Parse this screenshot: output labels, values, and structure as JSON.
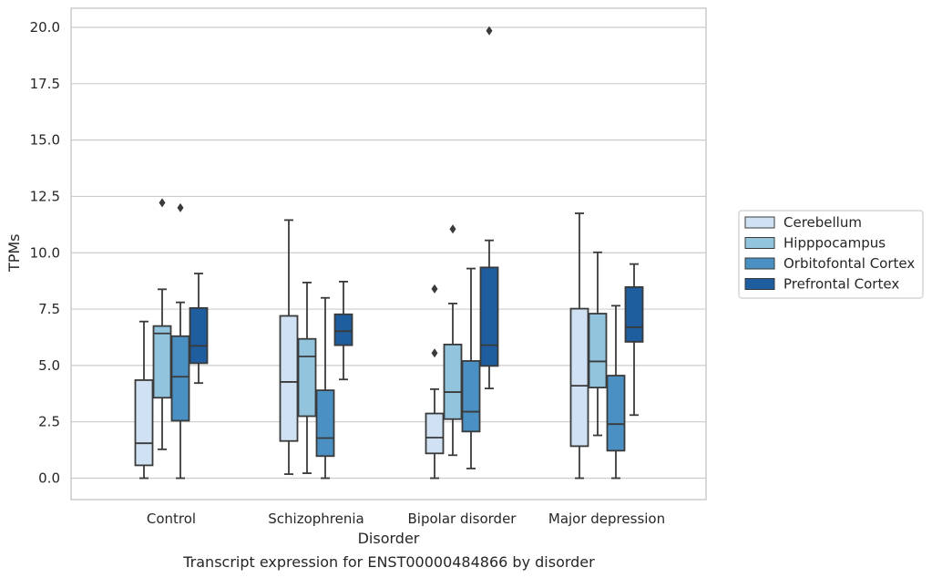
{
  "chart_data": {
    "type": "boxplot",
    "title": "",
    "caption": "Transcript expression for ENST00000484866 by disorder",
    "xlabel": "Disorder",
    "ylabel": "TPMs",
    "ylim": [
      -0.95,
      20.85
    ],
    "yticks": [
      0.0,
      2.5,
      5.0,
      7.5,
      10.0,
      12.5,
      15.0,
      17.5,
      20.0
    ],
    "ytick_labels": [
      "0.0",
      "2.5",
      "5.0",
      "7.5",
      "10.0",
      "12.5",
      "15.0",
      "17.5",
      "20.0"
    ],
    "grid": "horizontal",
    "legend_position": "right",
    "categories": [
      "Control",
      "Schizophrenia",
      "Bipolar disorder",
      "Major depression"
    ],
    "series": [
      {
        "name": "Cerebellum",
        "color": "#cfe1f2",
        "boxes": [
          {
            "whislo": 0.0,
            "q1": 0.57,
            "med": 1.55,
            "q3": 4.35,
            "whishi": 6.95,
            "fliers": []
          },
          {
            "whislo": 0.18,
            "q1": 1.65,
            "med": 4.27,
            "q3": 7.2,
            "whishi": 11.45,
            "fliers": []
          },
          {
            "whislo": 0.0,
            "q1": 1.1,
            "med": 1.8,
            "q3": 2.87,
            "whishi": 3.95,
            "fliers": [
              5.55,
              8.4
            ]
          },
          {
            "whislo": 0.0,
            "q1": 1.42,
            "med": 4.1,
            "q3": 7.52,
            "whishi": 11.75,
            "fliers": []
          }
        ]
      },
      {
        "name": "Hipppocampus",
        "color": "#93c4de",
        "boxes": [
          {
            "whislo": 1.28,
            "q1": 3.57,
            "med": 6.42,
            "q3": 6.75,
            "whishi": 8.38,
            "fliers": [
              12.22
            ]
          },
          {
            "whislo": 0.22,
            "q1": 2.75,
            "med": 5.4,
            "q3": 6.18,
            "whishi": 8.68,
            "fliers": []
          },
          {
            "whislo": 1.02,
            "q1": 2.62,
            "med": 3.82,
            "q3": 5.93,
            "whishi": 7.75,
            "fliers": [
              11.05
            ]
          },
          {
            "whislo": 1.9,
            "q1": 4.02,
            "med": 5.18,
            "q3": 7.3,
            "whishi": 10.02,
            "fliers": []
          }
        ]
      },
      {
        "name": "Orbitofontal Cortex",
        "color": "#4a90c2",
        "boxes": [
          {
            "whislo": 0.0,
            "q1": 2.55,
            "med": 4.5,
            "q3": 6.3,
            "whishi": 7.8,
            "fliers": [
              12.0
            ]
          },
          {
            "whislo": 0.0,
            "q1": 0.98,
            "med": 1.78,
            "q3": 3.9,
            "whishi": 8.0,
            "fliers": []
          },
          {
            "whislo": 0.43,
            "q1": 2.07,
            "med": 2.95,
            "q3": 5.2,
            "whishi": 9.3,
            "fliers": []
          },
          {
            "whislo": 0.0,
            "q1": 1.22,
            "med": 2.4,
            "q3": 4.55,
            "whishi": 7.65,
            "fliers": []
          }
        ]
      },
      {
        "name": "Prefrontal Cortex",
        "color": "#1e5d9e",
        "boxes": [
          {
            "whislo": 4.22,
            "q1": 5.1,
            "med": 5.87,
            "q3": 7.55,
            "whishi": 9.08,
            "fliers": []
          },
          {
            "whislo": 4.38,
            "q1": 5.9,
            "med": 6.52,
            "q3": 7.27,
            "whishi": 8.72,
            "fliers": []
          },
          {
            "whislo": 3.98,
            "q1": 4.98,
            "med": 5.9,
            "q3": 9.35,
            "whishi": 10.55,
            "fliers": [
              19.85
            ]
          },
          {
            "whislo": 2.8,
            "q1": 6.05,
            "med": 6.7,
            "q3": 8.48,
            "whishi": 9.5,
            "fliers": []
          }
        ]
      }
    ]
  }
}
